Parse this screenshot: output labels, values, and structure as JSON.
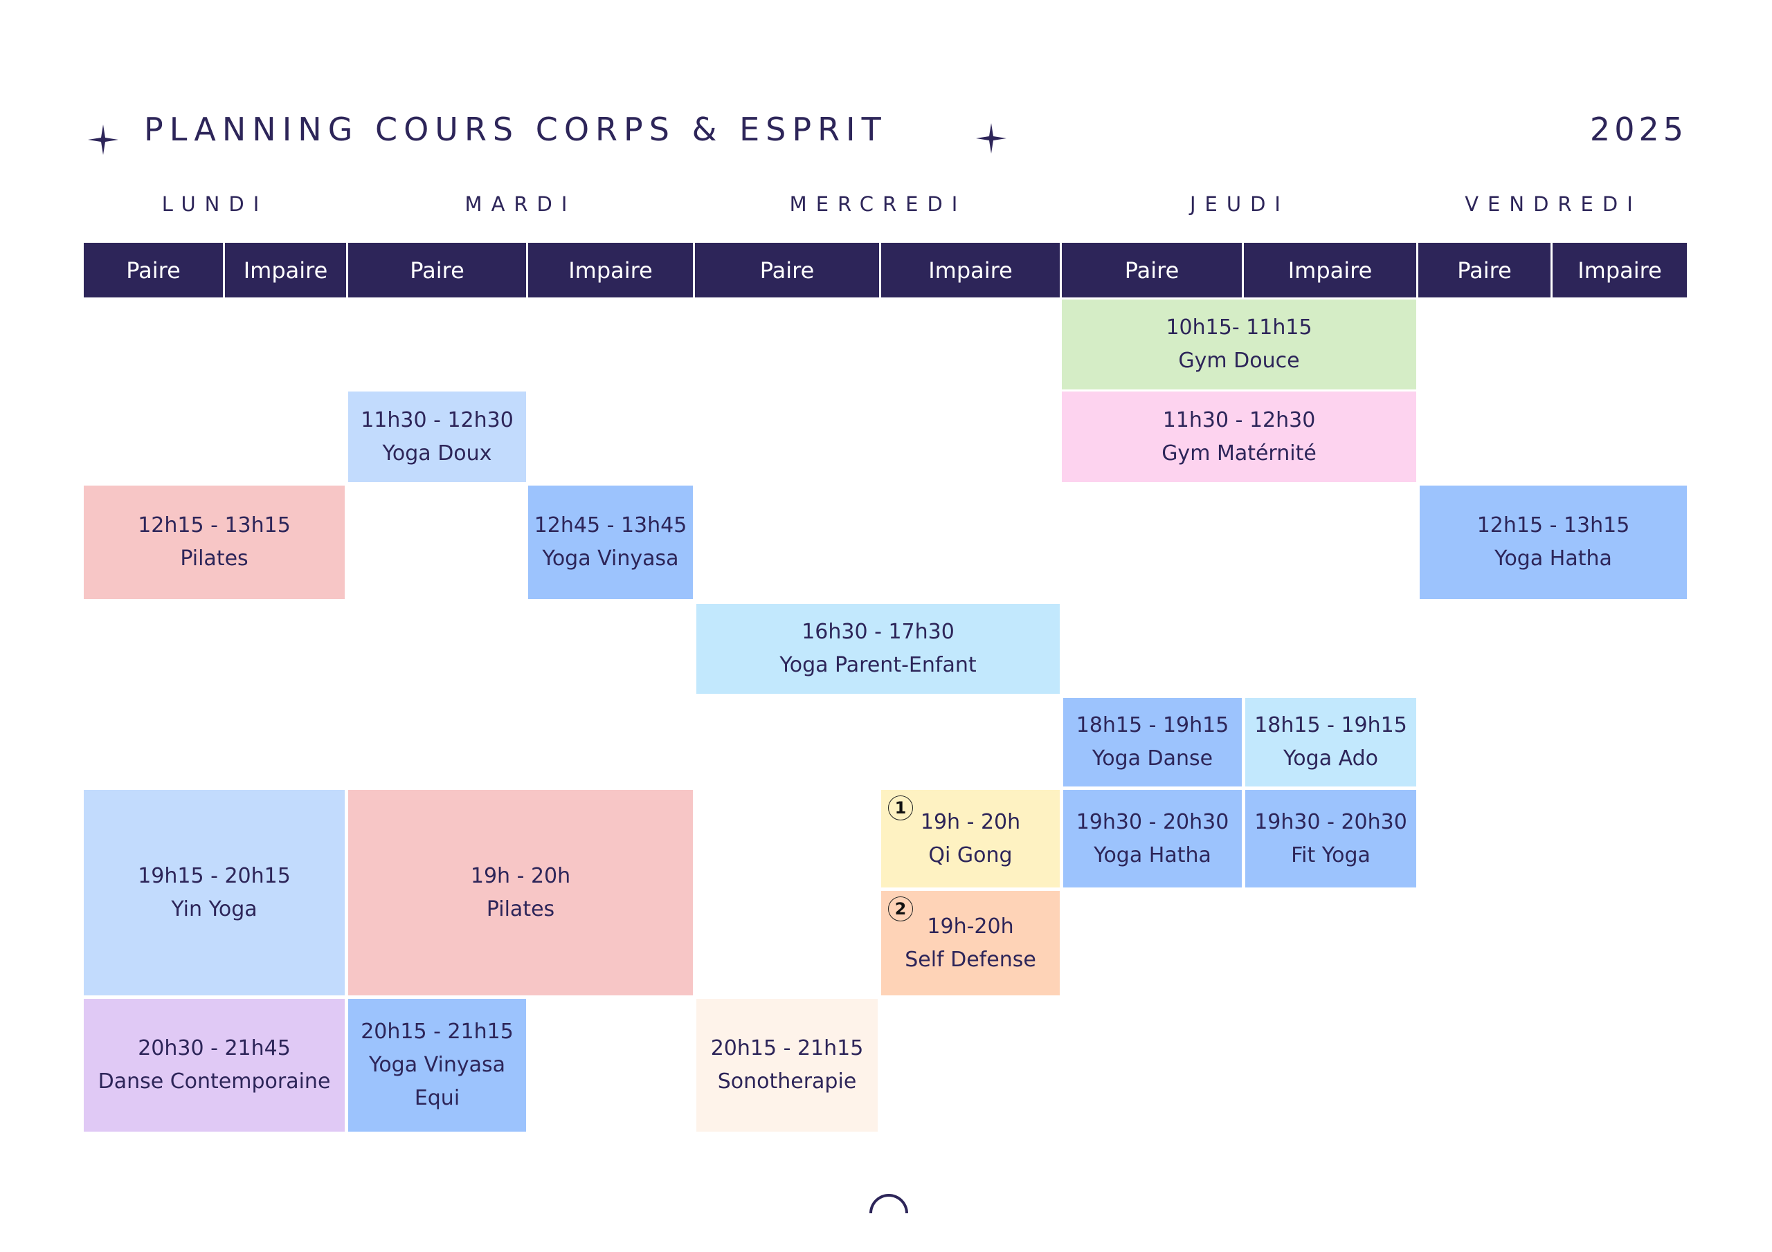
{
  "header": {
    "title": "PLANNING COURS CORPS & ESPRIT",
    "year": "2025"
  },
  "days": [
    "LUNDI",
    "MARDI",
    "MERCREDI",
    "JEUDI",
    "VENDREDI"
  ],
  "week_types": [
    "Paire",
    "Impaire",
    "Paire",
    "Impaire",
    "Paire",
    "Impaire",
    "Paire",
    "Impaire",
    "Paire",
    "Impaire"
  ],
  "colors": {
    "navy": "#2d2559",
    "green": "#d5edc6",
    "pink": "#fdd3ef",
    "salmon": "#f7c6c6",
    "light_blue": "#c2dbfd",
    "blue": "#9cc3fd",
    "cyan": "#c2e8fd",
    "yellow": "#fef2c2",
    "peach": "#fed3b7",
    "lavender": "#e0c9f5",
    "cream": "#fef3ea"
  },
  "classes": [
    {
      "day": "JEUDI",
      "week": "Paire + Impaire",
      "lines": [
        "10h15- 11h15",
        "Gym Douce"
      ],
      "color": "green"
    },
    {
      "day": "MARDI",
      "week": "Paire",
      "lines": [
        "11h30 - 12h30",
        "Yoga Doux"
      ],
      "color": "light_blue"
    },
    {
      "day": "JEUDI",
      "week": "Paire + Impaire",
      "lines": [
        "11h30 - 12h30",
        "Gym Matérnité"
      ],
      "color": "pink"
    },
    {
      "day": "LUNDI",
      "week": "Paire + Impaire",
      "lines": [
        "12h15 - 13h15",
        "Pilates"
      ],
      "color": "salmon"
    },
    {
      "day": "MARDI",
      "week": "Impaire",
      "lines": [
        "12h45 - 13h45",
        "Yoga Vinyasa"
      ],
      "color": "blue"
    },
    {
      "day": "VENDREDI",
      "week": "Paire + Impaire",
      "lines": [
        "12h15 - 13h15",
        "Yoga Hatha"
      ],
      "color": "blue"
    },
    {
      "day": "MERCREDI",
      "week": "Paire + Impaire",
      "lines": [
        "16h30 - 17h30",
        "Yoga Parent-Enfant"
      ],
      "color": "cyan"
    },
    {
      "day": "JEUDI",
      "week": "Paire",
      "lines": [
        "18h15 - 19h15",
        "Yoga Danse"
      ],
      "color": "blue"
    },
    {
      "day": "JEUDI",
      "week": "Impaire",
      "lines": [
        "18h15 - 19h15",
        "Yoga Ado"
      ],
      "color": "cyan"
    },
    {
      "day": "LUNDI",
      "week": "Paire + Impaire",
      "lines": [
        "19h15 - 20h15",
        "Yin Yoga"
      ],
      "color": "light_blue"
    },
    {
      "day": "MARDI",
      "week": "Paire + Impaire",
      "lines": [
        "19h - 20h",
        "Pilates"
      ],
      "color": "salmon"
    },
    {
      "day": "MERCREDI",
      "week": "Impaire",
      "lines": [
        "19h - 20h",
        "Qi Gong"
      ],
      "color": "yellow",
      "badge": "1"
    },
    {
      "day": "JEUDI",
      "week": "Paire",
      "lines": [
        "19h30 - 20h30",
        "Yoga Hatha"
      ],
      "color": "blue"
    },
    {
      "day": "JEUDI",
      "week": "Impaire",
      "lines": [
        "19h30 - 20h30",
        "Fit Yoga"
      ],
      "color": "blue"
    },
    {
      "day": "MERCREDI",
      "week": "Impaire",
      "lines": [
        "19h-20h",
        "Self Defense"
      ],
      "color": "peach",
      "badge": "2"
    },
    {
      "day": "LUNDI",
      "week": "Paire + Impaire",
      "lines": [
        "20h30 - 21h45",
        "Danse Contemporaine"
      ],
      "color": "lavender"
    },
    {
      "day": "MARDI",
      "week": "Paire",
      "lines": [
        "20h15 - 21h15",
        "Yoga Vinyasa",
        "Equi"
      ],
      "color": "blue"
    },
    {
      "day": "MERCREDI",
      "week": "Paire",
      "lines": [
        "20h15 - 21h15",
        "Sonotherapie"
      ],
      "color": "cream"
    }
  ]
}
